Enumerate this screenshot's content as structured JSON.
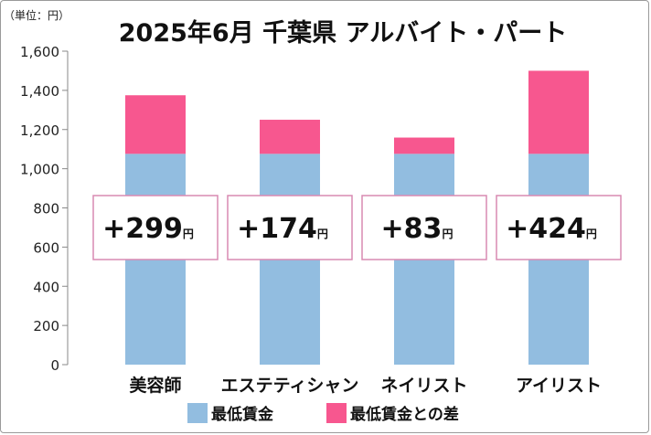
{
  "title": "2025年6月 千葉県 アルバイト・パート",
  "unit_label": "（単位：円）",
  "chart_data": {
    "type": "bar",
    "stacked": true,
    "title": "2025年6月 千葉県 アルバイト・パート",
    "categories": [
      "美容師",
      "エステティシャン",
      "ネイリスト",
      "アイリスト"
    ],
    "series": [
      {
        "name": "最低賃金",
        "color": "#92bde0",
        "values": [
          1076,
          1076,
          1076,
          1076
        ]
      },
      {
        "name": "最低賃金との差",
        "color": "#f7578f",
        "values": [
          299,
          174,
          83,
          424
        ]
      }
    ],
    "diff_labels": [
      "+299",
      "+174",
      "+83",
      "+424"
    ],
    "diff_unit": "円",
    "ylim": [
      0,
      1600
    ],
    "yticks": [
      "0",
      "200",
      "400",
      "600",
      "800",
      "1,000",
      "1,200",
      "1,400",
      "1,600"
    ],
    "ytick_values": [
      0,
      200,
      400,
      600,
      800,
      1000,
      1200,
      1400,
      1600
    ],
    "grid": false,
    "legend_position": "bottom",
    "colors": {
      "axis": "#888888",
      "label_border": "#d98ab2"
    }
  }
}
